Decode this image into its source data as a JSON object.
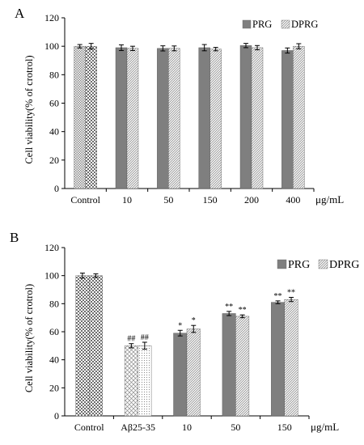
{
  "chart_data": [
    {
      "panel_label": "A",
      "type": "bar",
      "ylabel": "Cell viability(% of crotrol)",
      "unit_label": "μg/mL",
      "ylim": [
        0,
        120
      ],
      "yticks": [
        0,
        20,
        40,
        60,
        80,
        100,
        120
      ],
      "legend_position": "top-right",
      "groups": [
        {
          "label": "Control",
          "bars": [
            {
              "pattern": "checker-small",
              "value": 100,
              "err": 1.2,
              "annot": ""
            },
            {
              "pattern": "checker",
              "value": 100,
              "err": 2.0,
              "annot": ""
            }
          ]
        },
        {
          "label": "10",
          "bars": [
            {
              "series": "PRG",
              "value": 99,
              "err": 2.0,
              "annot": ""
            },
            {
              "series": "DPRG",
              "value": 98.5,
              "err": 1.5,
              "annot": ""
            }
          ]
        },
        {
          "label": "50",
          "bars": [
            {
              "series": "PRG",
              "value": 98.5,
              "err": 1.8,
              "annot": ""
            },
            {
              "series": "DPRG",
              "value": 98.5,
              "err": 1.7,
              "annot": ""
            }
          ]
        },
        {
          "label": "150",
          "bars": [
            {
              "series": "PRG",
              "value": 99,
              "err": 2.2,
              "annot": ""
            },
            {
              "series": "DPRG",
              "value": 98,
              "err": 1.2,
              "annot": ""
            }
          ]
        },
        {
          "label": "200",
          "bars": [
            {
              "series": "PRG",
              "value": 100.5,
              "err": 1.5,
              "annot": ""
            },
            {
              "series": "DPRG",
              "value": 99,
              "err": 1.5,
              "annot": ""
            }
          ]
        },
        {
          "label": "400",
          "bars": [
            {
              "series": "PRG",
              "value": 97,
              "err": 1.8,
              "annot": ""
            },
            {
              "series": "DPRG",
              "value": 100,
              "err": 1.8,
              "annot": ""
            }
          ]
        }
      ],
      "series": [
        {
          "name": "PRG",
          "color": "#7f7f7f",
          "pattern": "solid"
        },
        {
          "name": "DPRG",
          "color": "#bfbfbf",
          "pattern": "diagonal"
        }
      ]
    },
    {
      "panel_label": "B",
      "type": "bar",
      "ylabel": "Cell viability(% of crotrol)",
      "unit_label": "μg/mL",
      "ylim": [
        0,
        120
      ],
      "yticks": [
        0,
        20,
        40,
        60,
        80,
        100,
        120
      ],
      "legend_position": "top-right",
      "groups": [
        {
          "label": "Control",
          "bars": [
            {
              "pattern": "checker",
              "value": 100,
              "err": 1.8,
              "annot": ""
            },
            {
              "pattern": "checker",
              "value": 100,
              "err": 1.3,
              "annot": ""
            }
          ]
        },
        {
          "label": "Aβ25-35",
          "bars": [
            {
              "pattern": "crosshatch",
              "value": 50,
              "err": 1.5,
              "annot": "##"
            },
            {
              "pattern": "dots",
              "value": 50,
              "err": 2.5,
              "annot": "##"
            }
          ]
        },
        {
          "label": "10",
          "bars": [
            {
              "series": "PRG",
              "value": 59,
              "err": 2.0,
              "annot": "*"
            },
            {
              "series": "DPRG",
              "value": 62,
              "err": 2.5,
              "annot": "*"
            }
          ]
        },
        {
          "label": "50",
          "bars": [
            {
              "series": "PRG",
              "value": 73,
              "err": 1.5,
              "annot": "**"
            },
            {
              "series": "DPRG",
              "value": 71,
              "err": 1.0,
              "annot": "**"
            }
          ]
        },
        {
          "label": "150",
          "bars": [
            {
              "series": "PRG",
              "value": 81,
              "err": 1.0,
              "annot": "**"
            },
            {
              "series": "DPRG",
              "value": 83,
              "err": 1.5,
              "annot": "**"
            }
          ]
        }
      ],
      "series": [
        {
          "name": "PRG",
          "color": "#7f7f7f",
          "pattern": "solid"
        },
        {
          "name": "DPRG",
          "color": "#bfbfbf",
          "pattern": "diagonal"
        }
      ]
    }
  ]
}
